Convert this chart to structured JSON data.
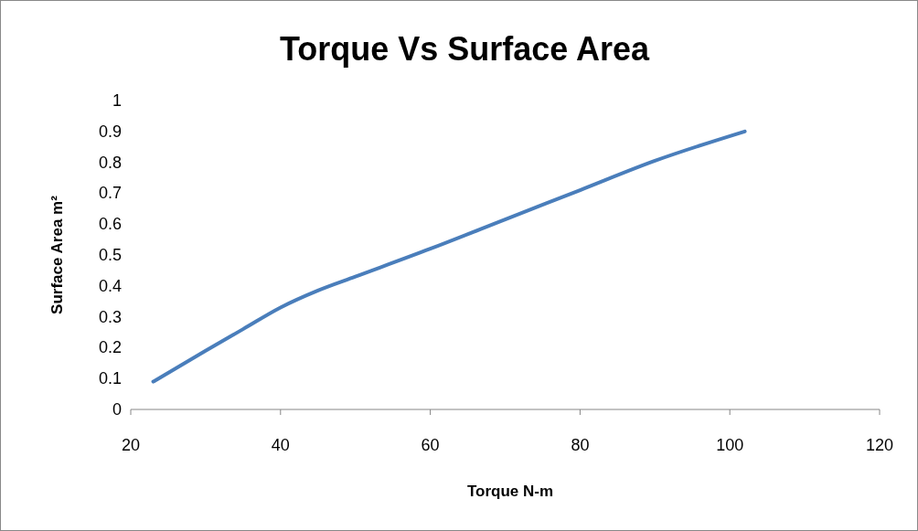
{
  "chart_data": {
    "type": "line",
    "title": "Torque Vs Surface Area",
    "xlabel": "Torque N-m",
    "ylabel": "Surface Area m²",
    "x": [
      23,
      30,
      35,
      40,
      45,
      50,
      60,
      70,
      80,
      90,
      102
    ],
    "series": [
      {
        "color": "#4a7ebb",
        "values": [
          0.09,
          0.19,
          0.26,
          0.33,
          0.385,
          0.43,
          0.52,
          0.615,
          0.71,
          0.805,
          0.9
        ]
      }
    ],
    "xlim": [
      20,
      120
    ],
    "xticks": [
      20,
      40,
      60,
      80,
      100,
      120
    ],
    "ylim": [
      0,
      1
    ],
    "yticks": [
      0,
      0.1,
      0.2,
      0.3,
      0.4,
      0.5,
      0.6,
      0.7,
      0.8,
      0.9,
      1
    ],
    "grid": false,
    "marker": "none",
    "line_style": "solid"
  }
}
